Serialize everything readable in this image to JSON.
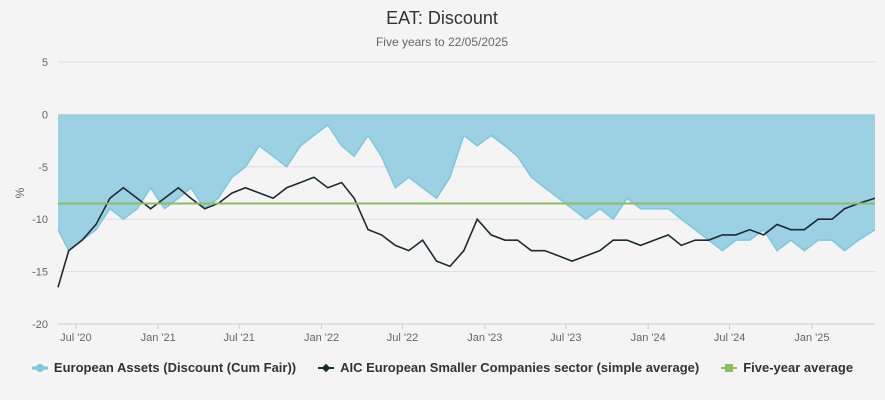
{
  "chart_data": {
    "type": "area",
    "title": "EAT: Discount",
    "subtitle": "Five years to 22/05/2025",
    "ylabel": "%",
    "ylim": [
      -20,
      5
    ],
    "y_ticks": [
      5,
      0,
      -5,
      -10,
      -15,
      -20
    ],
    "x_range": [
      "2020-05-22",
      "2025-05-22"
    ],
    "x_ticks": [
      {
        "date": "2020-07-01",
        "label": "Jul '20"
      },
      {
        "date": "2021-01-01",
        "label": "Jan '21"
      },
      {
        "date": "2021-07-01",
        "label": "Jul '21"
      },
      {
        "date": "2022-01-01",
        "label": "Jan '22"
      },
      {
        "date": "2022-07-01",
        "label": "Jul '22"
      },
      {
        "date": "2023-01-01",
        "label": "Jan '23"
      },
      {
        "date": "2023-07-01",
        "label": "Jul '23"
      },
      {
        "date": "2024-01-01",
        "label": "Jan '24"
      },
      {
        "date": "2024-07-01",
        "label": "Jul '24"
      },
      {
        "date": "2025-01-01",
        "label": "Jan '25"
      }
    ],
    "series": [
      {
        "name": "European Assets (Discount (Cum Fair))",
        "type": "area",
        "color": "#7ec8dd",
        "fill": "#9bd1e2",
        "x": [
          "2020-05-22",
          "2020-06-15",
          "2020-07-15",
          "2020-08-15",
          "2020-09-15",
          "2020-10-15",
          "2020-11-15",
          "2020-12-15",
          "2021-01-15",
          "2021-02-15",
          "2021-03-15",
          "2021-04-15",
          "2021-05-15",
          "2021-06-15",
          "2021-07-15",
          "2021-08-15",
          "2021-09-15",
          "2021-10-15",
          "2021-11-15",
          "2021-12-15",
          "2022-01-15",
          "2022-02-15",
          "2022-03-15",
          "2022-04-15",
          "2022-05-15",
          "2022-06-15",
          "2022-07-15",
          "2022-08-15",
          "2022-09-15",
          "2022-10-15",
          "2022-11-15",
          "2022-12-15",
          "2023-01-15",
          "2023-02-15",
          "2023-03-15",
          "2023-04-15",
          "2023-05-15",
          "2023-06-15",
          "2023-07-15",
          "2023-08-15",
          "2023-09-15",
          "2023-10-15",
          "2023-11-15",
          "2023-12-15",
          "2024-01-15",
          "2024-02-15",
          "2024-03-15",
          "2024-04-15",
          "2024-05-15",
          "2024-06-15",
          "2024-07-15",
          "2024-08-15",
          "2024-09-15",
          "2024-10-15",
          "2024-11-15",
          "2024-12-15",
          "2025-01-15",
          "2025-02-15",
          "2025-03-15",
          "2025-04-15",
          "2025-05-22"
        ],
        "values": [
          -11,
          -13,
          -12,
          -11,
          -9,
          -10,
          -9,
          -7,
          -9,
          -8,
          -7,
          -9,
          -8,
          -6,
          -5,
          -3,
          -4,
          -5,
          -3,
          -2,
          -1,
          -3,
          -4,
          -2,
          -4,
          -7,
          -6,
          -7,
          -8,
          -6,
          -2,
          -3,
          -2,
          -3,
          -4,
          -6,
          -7,
          -8,
          -9,
          -10,
          -9,
          -10,
          -8,
          -9,
          -9,
          -9,
          -10,
          -11,
          -12,
          -13,
          -12,
          -12,
          -11,
          -13,
          -12,
          -13,
          -12,
          -12,
          -13,
          -12,
          -11
        ]
      },
      {
        "name": "AIC European Smaller Companies sector (simple average)",
        "type": "line",
        "color": "#1b2a33",
        "x": [
          "2020-05-22",
          "2020-06-15",
          "2020-07-15",
          "2020-08-15",
          "2020-09-15",
          "2020-10-15",
          "2020-11-15",
          "2020-12-15",
          "2021-01-15",
          "2021-02-15",
          "2021-03-15",
          "2021-04-15",
          "2021-05-15",
          "2021-06-15",
          "2021-07-15",
          "2021-08-15",
          "2021-09-15",
          "2021-10-15",
          "2021-11-15",
          "2021-12-15",
          "2022-01-15",
          "2022-02-15",
          "2022-03-15",
          "2022-04-15",
          "2022-05-15",
          "2022-06-15",
          "2022-07-15",
          "2022-08-15",
          "2022-09-15",
          "2022-10-15",
          "2022-11-15",
          "2022-12-15",
          "2023-01-15",
          "2023-02-15",
          "2023-03-15",
          "2023-04-15",
          "2023-05-15",
          "2023-06-15",
          "2023-07-15",
          "2023-08-15",
          "2023-09-15",
          "2023-10-15",
          "2023-11-15",
          "2023-12-15",
          "2024-01-15",
          "2024-02-15",
          "2024-03-15",
          "2024-04-15",
          "2024-05-15",
          "2024-06-15",
          "2024-07-15",
          "2024-08-15",
          "2024-09-15",
          "2024-10-15",
          "2024-11-15",
          "2024-12-15",
          "2025-01-15",
          "2025-02-15",
          "2025-03-15",
          "2025-04-15",
          "2025-05-22"
        ],
        "values": [
          -16.5,
          -13,
          -12,
          -10.5,
          -8,
          -7,
          -8,
          -9,
          -8,
          -7,
          -8,
          -9,
          -8.5,
          -7.5,
          -7,
          -7.5,
          -8,
          -7,
          -6.5,
          -6,
          -7,
          -6.5,
          -8,
          -11,
          -11.5,
          -12.5,
          -13,
          -12,
          -14,
          -14.5,
          -13,
          -10,
          -11.5,
          -12,
          -12,
          -13,
          -13,
          -13.5,
          -14,
          -13.5,
          -13,
          -12,
          -12,
          -12.5,
          -12,
          -11.5,
          -12.5,
          -12,
          -12,
          -11.5,
          -11.5,
          -11,
          -11.5,
          -10.5,
          -11,
          -11,
          -10,
          -10,
          -9,
          -8.5,
          -8
        ]
      },
      {
        "name": "Five-year average",
        "type": "line",
        "color": "#8cbd62",
        "x": [
          "2020-05-22",
          "2025-05-22"
        ],
        "values": [
          -8.5,
          -8.5
        ]
      }
    ],
    "colors": {
      "background": "#f4f4f4",
      "grid": "#dddddd",
      "axis_text": "#666666"
    },
    "grid": true,
    "legend_position": "bottom"
  }
}
